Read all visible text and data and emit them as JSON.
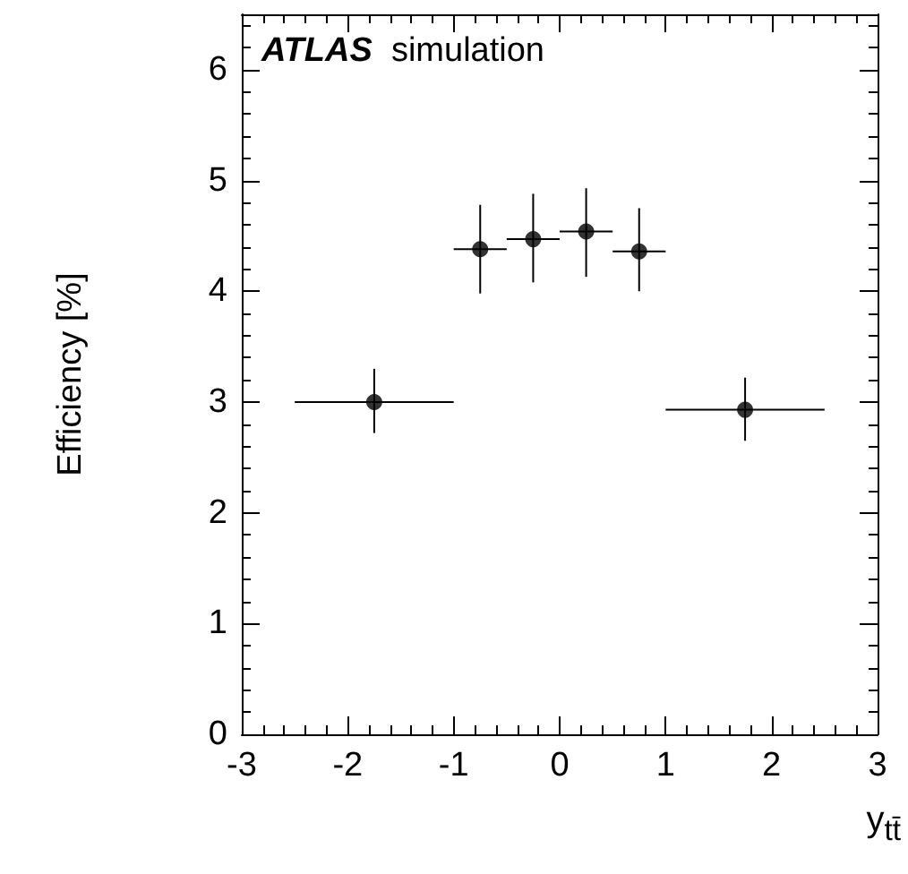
{
  "chart_data": {
    "type": "scatter",
    "title": "ATLAS simulation",
    "xlabel": "y$_{tt̄}$",
    "ylabel": "Efficiency [%]",
    "x": [
      -1.75,
      -0.75,
      -0.25,
      0.25,
      0.75,
      1.75
    ],
    "series": [
      {
        "color": "#000000",
        "values": [
          3.0,
          4.38,
          4.47,
          4.54,
          4.36,
          2.93
        ],
        "errors": [
          [
            2.72,
            3.3
          ],
          [
            3.98,
            4.78
          ],
          [
            4.08,
            4.88
          ],
          [
            4.13,
            4.93
          ],
          [
            4.0,
            4.75
          ],
          [
            2.65,
            3.22
          ]
        ],
        "xerrors": [
          0.75,
          0.25,
          0.25,
          0.25,
          0.25,
          0.75
        ]
      }
    ],
    "xlim": [
      -3,
      3
    ],
    "xticks": [
      -3,
      -2,
      -1,
      0,
      1,
      2,
      3
    ],
    "ylim": [
      0,
      6.5
    ],
    "yticks": [
      0,
      1,
      2,
      3,
      4,
      5,
      6
    ],
    "grid": false,
    "marker": "circle"
  }
}
